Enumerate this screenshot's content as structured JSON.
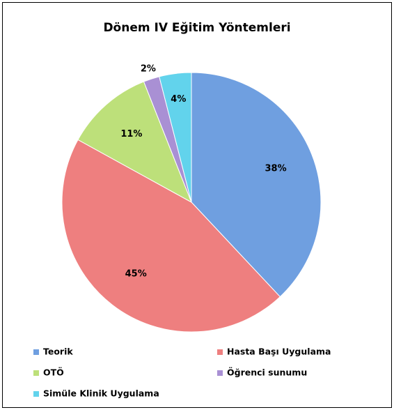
{
  "chart_data": {
    "type": "pie",
    "title": "Dönem IV Eğitim Yöntemleri",
    "categories": [
      "Teorik",
      "Hasta Başı Uygulama",
      "OTÖ",
      "Öğrenci sunumu",
      "Simüle Klinik Uygulama"
    ],
    "values": [
      38,
      45,
      11,
      2,
      4
    ],
    "value_labels": [
      "38%",
      "45%",
      "11%",
      "2%",
      "4%"
    ],
    "colors": [
      "#6f9fe0",
      "#ee7f7f",
      "#bde07a",
      "#a990d4",
      "#62d3ec"
    ]
  }
}
